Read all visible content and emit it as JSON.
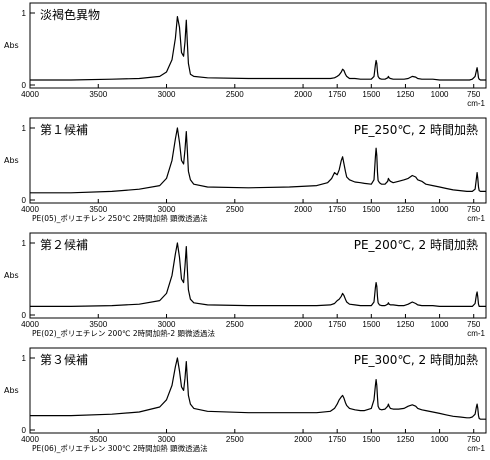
{
  "chart_data": [
    {
      "type": "line",
      "title": "淡褐色異物",
      "condition": "",
      "footnote": "",
      "ylabel": "Abs",
      "xunit": "cm-1",
      "xlim": [
        4000,
        660
      ],
      "ylim": [
        0,
        1
      ],
      "y_ticks": [
        "1",
        "0"
      ],
      "x_ticks": [
        "4000",
        "3500",
        "3000",
        "2500",
        "2000",
        "1750",
        "1500",
        "1250",
        "1000",
        "750"
      ],
      "x": [
        4000,
        3700,
        3400,
        3200,
        3050,
        3000,
        2960,
        2935,
        2920,
        2905,
        2890,
        2875,
        2865,
        2855,
        2848,
        2840,
        2825,
        2800,
        2700,
        2400,
        2100,
        1900,
        1800,
        1770,
        1750,
        1735,
        1720,
        1710,
        1700,
        1690,
        1680,
        1660,
        1620,
        1580,
        1550,
        1500,
        1480,
        1470,
        1465,
        1460,
        1455,
        1450,
        1440,
        1425,
        1400,
        1380,
        1375,
        1370,
        1360,
        1340,
        1300,
        1260,
        1230,
        1200,
        1175,
        1160,
        1130,
        1100,
        1050,
        1000,
        950,
        900,
        850,
        800,
        780,
        760,
        740,
        730,
        725,
        720,
        715,
        710,
        700,
        680,
        660
      ],
      "y": [
        0.07,
        0.07,
        0.08,
        0.09,
        0.12,
        0.18,
        0.35,
        0.65,
        0.95,
        0.8,
        0.45,
        0.4,
        0.6,
        0.9,
        0.6,
        0.3,
        0.15,
        0.12,
        0.1,
        0.09,
        0.09,
        0.09,
        0.09,
        0.1,
        0.12,
        0.14,
        0.18,
        0.22,
        0.2,
        0.15,
        0.12,
        0.09,
        0.09,
        0.08,
        0.08,
        0.08,
        0.12,
        0.28,
        0.34,
        0.3,
        0.18,
        0.12,
        0.09,
        0.08,
        0.08,
        0.1,
        0.12,
        0.1,
        0.09,
        0.08,
        0.08,
        0.08,
        0.09,
        0.12,
        0.11,
        0.09,
        0.08,
        0.08,
        0.08,
        0.07,
        0.07,
        0.07,
        0.07,
        0.07,
        0.07,
        0.08,
        0.12,
        0.2,
        0.24,
        0.18,
        0.1,
        0.08,
        0.07,
        0.07,
        0.07
      ]
    },
    {
      "type": "line",
      "title": "第１候補",
      "condition": "PE_250℃, 2 時間加熱",
      "footnote": "PE(05)_ポリエチレン  250℃  2時間加熱  顕微透過法",
      "ylabel": "Abs",
      "xunit": "cm-1",
      "xlim": [
        4000,
        660
      ],
      "ylim": [
        0,
        1
      ],
      "y_ticks": [
        "1",
        "0"
      ],
      "x_ticks": [
        "4000",
        "3500",
        "3000",
        "2500",
        "2000",
        "1750",
        "1500",
        "1250",
        "1000",
        "750"
      ],
      "x": [
        4000,
        3700,
        3400,
        3200,
        3050,
        3000,
        2960,
        2935,
        2920,
        2905,
        2890,
        2875,
        2865,
        2855,
        2848,
        2840,
        2825,
        2800,
        2700,
        2400,
        2100,
        1900,
        1820,
        1790,
        1770,
        1750,
        1735,
        1720,
        1710,
        1700,
        1690,
        1680,
        1660,
        1620,
        1580,
        1550,
        1500,
        1480,
        1470,
        1465,
        1460,
        1455,
        1450,
        1440,
        1425,
        1400,
        1380,
        1375,
        1370,
        1360,
        1340,
        1300,
        1260,
        1230,
        1200,
        1175,
        1160,
        1130,
        1100,
        1050,
        1000,
        950,
        900,
        850,
        800,
        780,
        760,
        740,
        730,
        725,
        720,
        715,
        710,
        700,
        680,
        660
      ],
      "y": [
        0.1,
        0.1,
        0.12,
        0.15,
        0.2,
        0.3,
        0.55,
        0.85,
        1.0,
        0.8,
        0.55,
        0.5,
        0.7,
        0.95,
        0.7,
        0.4,
        0.28,
        0.22,
        0.18,
        0.17,
        0.18,
        0.2,
        0.24,
        0.3,
        0.38,
        0.35,
        0.42,
        0.55,
        0.6,
        0.5,
        0.4,
        0.32,
        0.28,
        0.25,
        0.24,
        0.23,
        0.22,
        0.28,
        0.6,
        0.72,
        0.62,
        0.38,
        0.27,
        0.24,
        0.22,
        0.22,
        0.26,
        0.3,
        0.28,
        0.26,
        0.24,
        0.26,
        0.28,
        0.3,
        0.34,
        0.32,
        0.28,
        0.26,
        0.22,
        0.2,
        0.18,
        0.16,
        0.14,
        0.13,
        0.12,
        0.12,
        0.12,
        0.15,
        0.3,
        0.38,
        0.3,
        0.18,
        0.13,
        0.12,
        0.12,
        0.12
      ]
    },
    {
      "type": "line",
      "title": "第２候補",
      "condition": "PE_200℃, 2 時間加熱",
      "footnote": "PE(02)_ポリエチレン  200℃  2時間加熱-2  顕微透過法",
      "ylabel": "Abs",
      "xunit": "cm-1",
      "xlim": [
        4000,
        660
      ],
      "ylim": [
        0,
        1
      ],
      "y_ticks": [
        "1",
        "0"
      ],
      "x_ticks": [
        "4000",
        "3500",
        "3000",
        "2500",
        "2000",
        "1750",
        "1500",
        "1250",
        "1000",
        "750"
      ],
      "x": [
        4000,
        3700,
        3400,
        3200,
        3050,
        3000,
        2960,
        2935,
        2920,
        2905,
        2890,
        2875,
        2865,
        2855,
        2848,
        2840,
        2825,
        2800,
        2700,
        2400,
        2100,
        1900,
        1800,
        1770,
        1750,
        1735,
        1720,
        1710,
        1700,
        1690,
        1680,
        1660,
        1620,
        1580,
        1550,
        1500,
        1480,
        1470,
        1465,
        1460,
        1455,
        1450,
        1440,
        1425,
        1400,
        1380,
        1375,
        1370,
        1360,
        1340,
        1300,
        1260,
        1230,
        1200,
        1175,
        1160,
        1130,
        1100,
        1050,
        1000,
        950,
        900,
        850,
        800,
        780,
        760,
        740,
        730,
        725,
        720,
        715,
        710,
        700,
        680,
        660
      ],
      "y": [
        0.12,
        0.12,
        0.13,
        0.15,
        0.2,
        0.3,
        0.55,
        0.85,
        1.0,
        0.8,
        0.5,
        0.45,
        0.68,
        0.95,
        0.65,
        0.35,
        0.22,
        0.17,
        0.14,
        0.13,
        0.13,
        0.13,
        0.14,
        0.16,
        0.2,
        0.22,
        0.26,
        0.3,
        0.27,
        0.22,
        0.18,
        0.15,
        0.14,
        0.13,
        0.13,
        0.13,
        0.18,
        0.38,
        0.45,
        0.4,
        0.25,
        0.17,
        0.14,
        0.13,
        0.13,
        0.15,
        0.17,
        0.15,
        0.14,
        0.14,
        0.13,
        0.13,
        0.15,
        0.18,
        0.16,
        0.14,
        0.13,
        0.13,
        0.13,
        0.12,
        0.12,
        0.12,
        0.12,
        0.12,
        0.12,
        0.12,
        0.16,
        0.28,
        0.32,
        0.25,
        0.15,
        0.12,
        0.12,
        0.12,
        0.12
      ]
    },
    {
      "type": "line",
      "title": "第３候補",
      "condition": "PE_300℃, 2 時間加熱",
      "footnote": "PE(06)_ポリエチレン  300℃  2時間加熱  顕微透過法",
      "ylabel": "Abs",
      "xunit": "cm-1",
      "xlim": [
        4000,
        660
      ],
      "ylim": [
        0,
        1
      ],
      "y_ticks": [
        "1",
        "0"
      ],
      "x_ticks": [
        "4000",
        "3500",
        "3000",
        "2500",
        "2000",
        "1750",
        "1500",
        "1250",
        "1000",
        "750"
      ],
      "x": [
        4000,
        3700,
        3400,
        3200,
        3050,
        3000,
        2960,
        2935,
        2920,
        2905,
        2890,
        2875,
        2865,
        2855,
        2848,
        2840,
        2825,
        2800,
        2700,
        2400,
        2100,
        1900,
        1800,
        1770,
        1750,
        1735,
        1720,
        1710,
        1700,
        1690,
        1680,
        1660,
        1620,
        1580,
        1550,
        1500,
        1480,
        1470,
        1465,
        1460,
        1455,
        1450,
        1440,
        1425,
        1400,
        1380,
        1375,
        1370,
        1360,
        1340,
        1300,
        1260,
        1230,
        1200,
        1175,
        1160,
        1130,
        1100,
        1050,
        1000,
        950,
        900,
        850,
        800,
        780,
        760,
        740,
        730,
        725,
        720,
        715,
        710,
        700,
        680,
        660
      ],
      "y": [
        0.2,
        0.2,
        0.22,
        0.25,
        0.32,
        0.42,
        0.62,
        0.88,
        1.0,
        0.82,
        0.6,
        0.55,
        0.72,
        0.95,
        0.72,
        0.48,
        0.36,
        0.3,
        0.26,
        0.24,
        0.24,
        0.24,
        0.26,
        0.3,
        0.36,
        0.42,
        0.46,
        0.48,
        0.44,
        0.38,
        0.34,
        0.3,
        0.28,
        0.27,
        0.27,
        0.3,
        0.42,
        0.62,
        0.7,
        0.62,
        0.45,
        0.33,
        0.29,
        0.28,
        0.29,
        0.33,
        0.36,
        0.33,
        0.3,
        0.29,
        0.29,
        0.3,
        0.33,
        0.35,
        0.33,
        0.3,
        0.28,
        0.27,
        0.25,
        0.23,
        0.21,
        0.19,
        0.18,
        0.17,
        0.17,
        0.18,
        0.22,
        0.32,
        0.36,
        0.3,
        0.2,
        0.16,
        0.15,
        0.15,
        0.15
      ]
    }
  ]
}
